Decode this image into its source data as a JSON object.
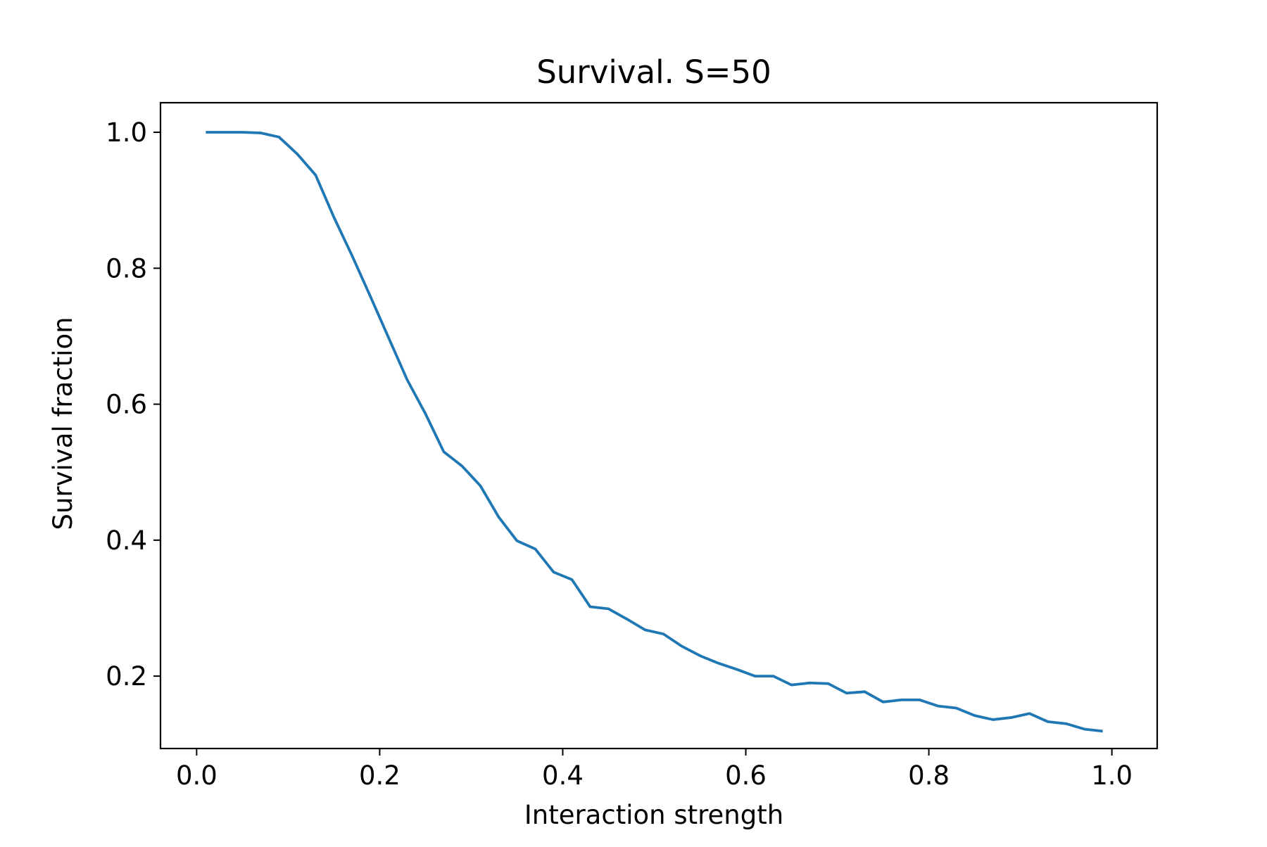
{
  "chart_data": {
    "type": "line",
    "title": "Survival. S=50",
    "xlabel": "Interaction strength",
    "ylabel": "Survival fraction",
    "xlim": [
      -0.0395,
      1.0495
    ],
    "ylim": [
      0.0935,
      1.0435
    ],
    "xticks": [
      0.0,
      0.2,
      0.4,
      0.6,
      0.8,
      1.0
    ],
    "xtick_labels": [
      "0.0",
      "0.2",
      "0.4",
      "0.6",
      "0.8",
      "1.0"
    ],
    "yticks": [
      0.2,
      0.4,
      0.6,
      0.8,
      1.0
    ],
    "ytick_labels": [
      "0.2",
      "0.4",
      "0.6",
      "0.8",
      "1.0"
    ],
    "grid": false,
    "legend": "none",
    "series": [
      {
        "color": "#1f77b4",
        "x": [
          0.01,
          0.03,
          0.05,
          0.07,
          0.09,
          0.11,
          0.13,
          0.15,
          0.17,
          0.19,
          0.21,
          0.23,
          0.25,
          0.27,
          0.29,
          0.31,
          0.33,
          0.35,
          0.37,
          0.39,
          0.41,
          0.43,
          0.45,
          0.47,
          0.49,
          0.51,
          0.53,
          0.55,
          0.57,
          0.59,
          0.61,
          0.63,
          0.65,
          0.67,
          0.69,
          0.71,
          0.73,
          0.75,
          0.77,
          0.79,
          0.81,
          0.83,
          0.85,
          0.87,
          0.89,
          0.91,
          0.93,
          0.95,
          0.97,
          0.99
        ],
        "y": [
          1.0,
          1.0,
          1.0,
          0.999,
          0.993,
          0.968,
          0.937,
          0.875,
          0.818,
          0.758,
          0.697,
          0.636,
          0.586,
          0.53,
          0.509,
          0.48,
          0.434,
          0.399,
          0.387,
          0.353,
          0.342,
          0.302,
          0.299,
          0.284,
          0.268,
          0.262,
          0.244,
          0.23,
          0.219,
          0.21,
          0.2,
          0.2,
          0.187,
          0.19,
          0.189,
          0.175,
          0.177,
          0.162,
          0.165,
          0.165,
          0.156,
          0.153,
          0.142,
          0.136,
          0.139,
          0.145,
          0.133,
          0.13,
          0.122,
          0.119
        ]
      }
    ]
  }
}
